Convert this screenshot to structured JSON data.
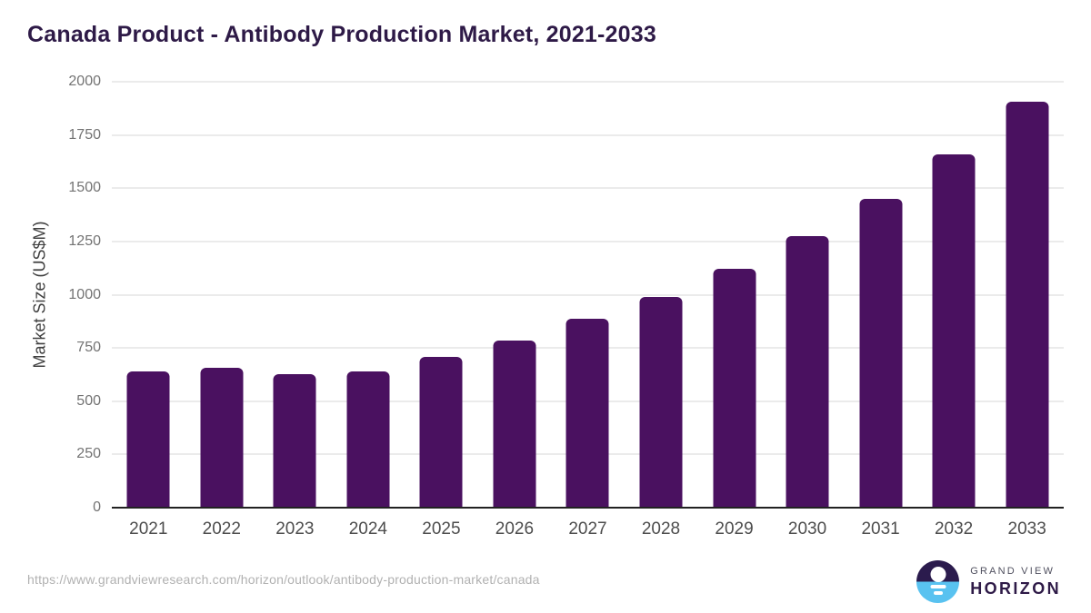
{
  "header": {
    "title": "Canada Product - Antibody Production Market, 2021-2033"
  },
  "chart_data": {
    "type": "bar",
    "title": "Canada Product - Antibody Production Market, 2021-2033",
    "categories": [
      "2021",
      "2022",
      "2023",
      "2024",
      "2025",
      "2026",
      "2027",
      "2028",
      "2029",
      "2030",
      "2031",
      "2032",
      "2033"
    ],
    "values": [
      640,
      655,
      625,
      640,
      710,
      785,
      885,
      990,
      1120,
      1275,
      1450,
      1660,
      1905
    ],
    "xlabel": "",
    "ylabel": "Market Size (US$M)",
    "ylim": [
      0,
      2000
    ],
    "ytick_step": 250,
    "grid": "horizontal-only",
    "legend_position": "none",
    "bar_color": "#4a1160"
  },
  "footer": {
    "source_url": "https://www.grandviewresearch.com/horizon/outlook/antibody-production-market/canada",
    "logo": {
      "icon": "horizon-sun-icon",
      "line1": "GRAND VIEW",
      "line2": "HORIZON"
    }
  },
  "colors": {
    "title_text": "#2e1a47",
    "bar": "#4a1160",
    "gridline": "#ebebeb",
    "axis_line": "#222222",
    "y_tick_label": "#737373",
    "x_tick_label": "#4d4d4d",
    "url_text": "#b1b1b1",
    "logo_blue": "#59c2f0",
    "logo_dark": "#2b1b4d"
  }
}
